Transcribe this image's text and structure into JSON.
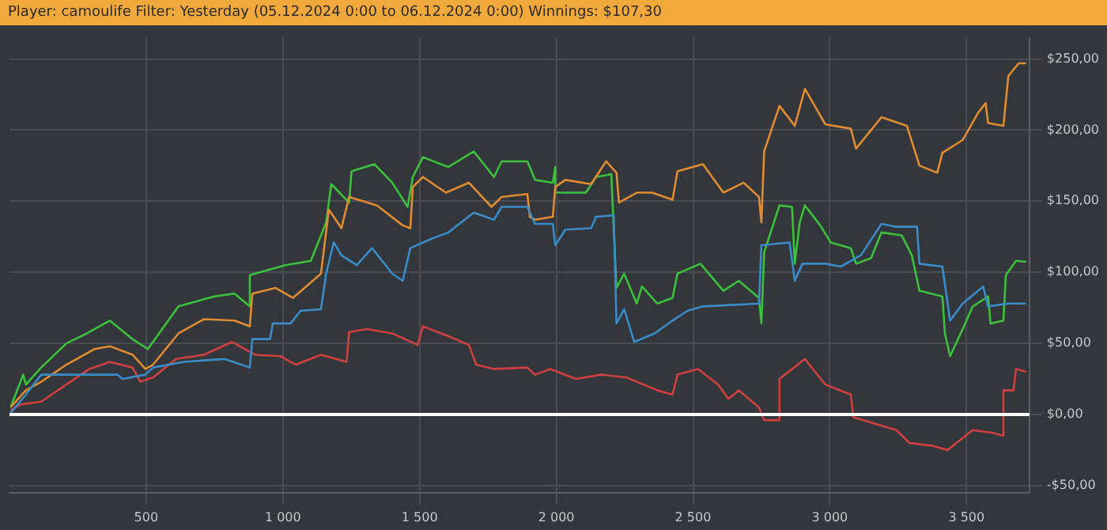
{
  "chart_data": {
    "type": "line",
    "title": "Player: camoulife Filter: Yesterday (05.12.2024 0:00 to 06.12.2024 0:00) Winnings: $107,30",
    "xlim": [
      0,
      3730
    ],
    "ylim": [
      -55,
      265
    ],
    "xticks": [
      500,
      {
        "value": 1000,
        "label": "1 000"
      },
      {
        "value": 1500,
        "label": "1 500"
      },
      {
        "value": 2000,
        "label": "2 000"
      },
      {
        "value": 2500,
        "label": "2 500"
      },
      {
        "value": 3000,
        "label": "3 000"
      },
      {
        "value": 3500,
        "label": "3 500"
      }
    ],
    "yticks": [
      {
        "value": -50,
        "label": "-$50,00"
      },
      {
        "value": 0,
        "label": "$0,00"
      },
      {
        "value": 50,
        "label": "$50,00"
      },
      {
        "value": 100,
        "label": "$100,00"
      },
      {
        "value": 150,
        "label": "$150,00"
      },
      {
        "value": 200,
        "label": "$200,00"
      },
      {
        "value": 250,
        "label": "$250,00"
      }
    ],
    "grid": true,
    "legend": false,
    "marker": "none",
    "line_style": "solid",
    "ref_lines": [
      {
        "axis": "y",
        "value": 0,
        "color": "#ffffff"
      }
    ],
    "series": [
      {
        "color": "#3a8cc8",
        "x": [
          4,
          60,
          116,
          395,
          413,
          497,
          525,
          637,
          786,
          879,
          888,
          953,
          963,
          1028,
          1065,
          1139,
          1158,
          1186,
          1214,
          1270,
          1326,
          1400,
          1438,
          1466,
          1549,
          1605,
          1698,
          1772,
          1800,
          1894,
          1922,
          1987,
          1996,
          2033,
          2127,
          2145,
          2210,
          2220,
          2248,
          2285,
          2359,
          2425,
          2480,
          2536,
          2741,
          2750,
          2853,
          2872,
          2900,
          2984,
          3040,
          3114,
          3189,
          3244,
          3319,
          3328,
          3412,
          3440,
          3486,
          3561,
          3579,
          3653,
          3718
        ],
        "values": [
          1,
          14,
          28,
          28,
          25,
          28,
          33,
          37,
          39,
          33,
          53,
          53,
          64,
          64,
          73,
          74,
          99,
          121,
          112,
          105,
          117,
          99,
          94,
          117,
          124,
          128,
          142,
          137,
          146,
          146,
          134,
          134,
          119,
          130,
          131,
          139,
          140,
          64,
          74,
          51,
          57,
          66,
          73,
          76,
          78,
          119,
          121,
          94,
          106,
          106,
          104,
          112,
          134,
          132,
          132,
          106,
          104,
          66,
          78,
          90,
          76,
          78,
          78
        ]
      },
      {
        "color": "#d04040",
        "x": [
          4,
          41,
          116,
          208,
          292,
          367,
          450,
          478,
          525,
          609,
          711,
          814,
          898,
          991,
          1047,
          1139,
          1233,
          1242,
          1307,
          1400,
          1493,
          1512,
          1605,
          1680,
          1707,
          1772,
          1894,
          1922,
          1978,
          2071,
          2164,
          2257,
          2369,
          2425,
          2443,
          2518,
          2592,
          2629,
          2667,
          2741,
          2760,
          2816,
          2816,
          2909,
          2984,
          3077,
          3086,
          3244,
          3291,
          3374,
          3430,
          3523,
          3598,
          3635,
          3635,
          3672,
          3681,
          3718
        ],
        "values": [
          3,
          7,
          9,
          21,
          32,
          37,
          33,
          23,
          26,
          39,
          42,
          51,
          42,
          41,
          35,
          42,
          37,
          58,
          60,
          57,
          49,
          62,
          55,
          49,
          35,
          32,
          33,
          28,
          32,
          25,
          28,
          26,
          17,
          14,
          28,
          32,
          21,
          11,
          17,
          5,
          -4,
          -4,
          25,
          39,
          21,
          14,
          -2,
          -11,
          -20,
          -22,
          -25,
          -11,
          -13,
          -15,
          17,
          17,
          32,
          30
        ]
      },
      {
        "color": "#e08c30",
        "x": [
          4,
          60,
          116,
          208,
          311,
          367,
          450,
          497,
          525,
          618,
          711,
          823,
          879,
          888,
          972,
          1037,
          1139,
          1168,
          1214,
          1242,
          1344,
          1438,
          1466,
          1475,
          1512,
          1596,
          1680,
          1763,
          1800,
          1894,
          1903,
          1922,
          1987,
          1996,
          2033,
          2127,
          2182,
          2220,
          2229,
          2294,
          2350,
          2425,
          2443,
          2536,
          2611,
          2685,
          2741,
          2750,
          2760,
          2816,
          2872,
          2909,
          2984,
          3077,
          3096,
          3189,
          3282,
          3328,
          3393,
          3412,
          3486,
          3542,
          3570,
          3579,
          3635,
          3653,
          3691,
          3718
        ],
        "values": [
          5,
          17,
          23,
          35,
          46,
          48,
          42,
          32,
          35,
          57,
          67,
          66,
          62,
          85,
          89,
          82,
          99,
          144,
          131,
          153,
          147,
          133,
          131,
          160,
          167,
          156,
          163,
          146,
          153,
          155,
          139,
          137,
          139,
          160,
          165,
          162,
          178,
          170,
          149,
          156,
          156,
          151,
          171,
          176,
          156,
          163,
          153,
          135,
          185,
          217,
          203,
          229,
          204,
          201,
          187,
          209,
          203,
          175,
          170,
          184,
          193,
          212,
          219,
          205,
          203,
          238,
          247,
          247
        ]
      },
      {
        "color": "#3cc13c",
        "x": [
          4,
          50,
          60,
          116,
          208,
          283,
          367,
          450,
          506,
          618,
          749,
          823,
          879,
          879,
          1009,
          1102,
          1158,
          1177,
          1242,
          1251,
          1335,
          1400,
          1456,
          1475,
          1512,
          1605,
          1698,
          1772,
          1800,
          1894,
          1922,
          1987,
          1996,
          1996,
          2108,
          2145,
          2201,
          2220,
          2248,
          2294,
          2313,
          2369,
          2425,
          2443,
          2527,
          2611,
          2667,
          2741,
          2750,
          2760,
          2816,
          2862,
          2872,
          2890,
          2909,
          2965,
          3003,
          3077,
          3096,
          3151,
          3189,
          3263,
          3300,
          3328,
          3412,
          3421,
          3440,
          3486,
          3523,
          3579,
          3588,
          3635,
          3644,
          3681,
          3718
        ],
        "values": [
          5,
          28,
          21,
          33,
          50,
          57,
          66,
          53,
          46,
          76,
          83,
          85,
          76,
          98,
          105,
          108,
          135,
          162,
          149,
          171,
          176,
          163,
          146,
          167,
          181,
          174,
          185,
          167,
          178,
          178,
          165,
          163,
          174,
          156,
          156,
          167,
          169,
          89,
          99,
          78,
          90,
          78,
          82,
          99,
          106,
          87,
          94,
          82,
          64,
          114,
          147,
          146,
          106,
          135,
          147,
          133,
          121,
          117,
          106,
          110,
          128,
          126,
          112,
          87,
          83,
          57,
          41,
          60,
          76,
          83,
          64,
          66,
          98,
          108,
          107.3
        ]
      }
    ]
  }
}
